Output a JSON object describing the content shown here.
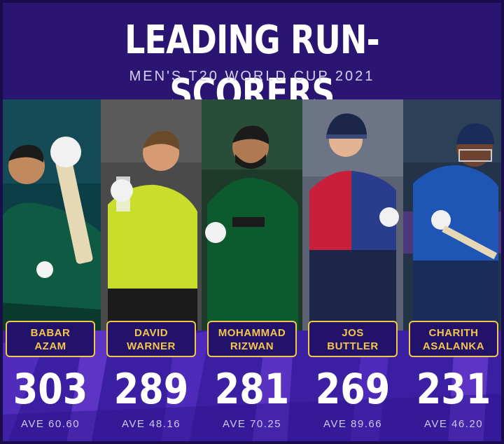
{
  "header": {
    "title": "LEADING RUN-SCORERS",
    "subtitle": "MEN'S T20 WORLD CUP 2021"
  },
  "players": [
    {
      "first": "BABAR",
      "last": "AZAM",
      "runs": "303",
      "ave": "AVE 60.60",
      "kit": "#0f5a43",
      "bg": "#0c3e47"
    },
    {
      "first": "DAVID",
      "last": "WARNER",
      "runs": "289",
      "ave": "AVE 48.16",
      "kit": "#c9de2a",
      "bg": "#4a4a4a"
    },
    {
      "first": "MOHAMMAD",
      "last": "RIZWAN",
      "runs": "281",
      "ave": "AVE 70.25",
      "kit": "#0d5a2e",
      "bg": "#1d3a2a"
    },
    {
      "first": "JOS",
      "last": "BUTTLER",
      "runs": "269",
      "ave": "AVE 89.66",
      "kit": "#c8203a",
      "bg": "#5a6274"
    },
    {
      "first": "CHARITH",
      "last": "ASALANKA",
      "runs": "231",
      "ave": "AVE 46.20",
      "kit": "#1f55b5",
      "bg": "#22334a"
    }
  ],
  "colors": {
    "background": "#2a1672",
    "card_border": "#f3c64c",
    "bottom_band": "#3b1fa3"
  }
}
